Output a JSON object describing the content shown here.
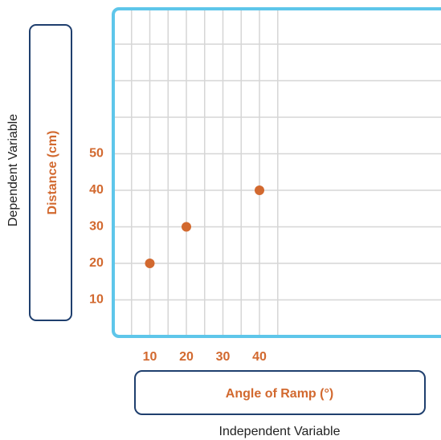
{
  "colors": {
    "accent": "#d2692f",
    "frame": "#5ec6ea",
    "box_border": "#1f3f6e",
    "grid": "#d6d6d6",
    "text": "#222222"
  },
  "labels": {
    "dependent_variable": "Dependent Variable",
    "independent_variable": "Independent Variable"
  },
  "chart_data": {
    "type": "scatter",
    "xlabel": "Angle of Ramp (°)",
    "ylabel": "Distance (cm)",
    "x_ticks": [
      "10",
      "20",
      "30",
      "40"
    ],
    "y_ticks": [
      "10",
      "20",
      "30",
      "40",
      "50"
    ],
    "xlim": [
      0,
      44
    ],
    "ylim": [
      0,
      90
    ],
    "grid": true,
    "series": [
      {
        "x": [
          10,
          20,
          40
        ],
        "y": [
          20,
          30,
          40
        ]
      }
    ]
  }
}
